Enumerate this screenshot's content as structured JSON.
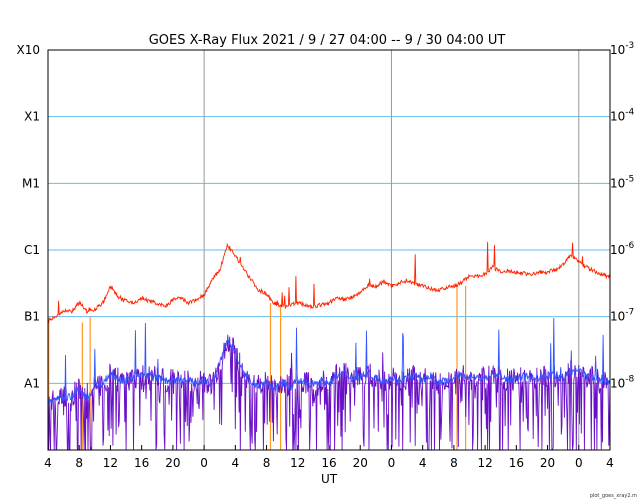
{
  "chart_data": {
    "type": "line",
    "title": "GOES X-Ray Flux   2021 /  9 / 27   04:00 --  9 / 30   04:00   UT",
    "xlabel": "UT",
    "credit": "plot_goes_xray2.m",
    "x_ticks": [
      "4",
      "8",
      "12",
      "16",
      "20",
      "0",
      "4",
      "8",
      "12",
      "16",
      "20",
      "0",
      "4",
      "8",
      "12",
      "16",
      "20",
      "0",
      "4"
    ],
    "day_boundaries": [
      "0",
      "0",
      "0"
    ],
    "y_left_labels": [
      {
        "label": "X10",
        "flux": 0.001
      },
      {
        "label": "X1",
        "flux": 0.0001
      },
      {
        "label": "M1",
        "flux": 1e-05
      },
      {
        "label": "C1",
        "flux": 1e-06
      },
      {
        "label": "B1",
        "flux": 1e-07
      },
      {
        "label": "A1",
        "flux": 1e-08
      }
    ],
    "y_right_labels": [
      {
        "base": "10",
        "exp": "-3",
        "flux": 0.001
      },
      {
        "base": "10",
        "exp": "-4",
        "flux": 0.0001
      },
      {
        "base": "10",
        "exp": "-5",
        "flux": 1e-05
      },
      {
        "base": "10",
        "exp": "-6",
        "flux": 1e-06
      },
      {
        "base": "10",
        "exp": "-7",
        "flux": 1e-07
      },
      {
        "base": "10",
        "exp": "-8",
        "flux": 1e-08
      }
    ],
    "y_scale": "log",
    "ylim": [
      1e-09,
      0.001
    ],
    "xlim_hours": [
      0,
      72
    ],
    "grid": "horizontal at each decade; vertical at day boundaries",
    "colors": {
      "long_channel": "#ff2200",
      "short_channel_a": "#3355ff",
      "short_channel_b": "#6a0fc8",
      "gaps": "#ff9922",
      "hgrid": "#66bbee",
      "vgrid": "#999999"
    },
    "series": [
      {
        "channel": "long",
        "x_hours": [
          0,
          1,
          2,
          3,
          4,
          5,
          6,
          7,
          8,
          9,
          10,
          11,
          12,
          13,
          14,
          15,
          16,
          17,
          18,
          19,
          20,
          21,
          22,
          23,
          24,
          25,
          26,
          27,
          28,
          29,
          30,
          31,
          32,
          33,
          34,
          35,
          36,
          37,
          38,
          39,
          40,
          41,
          42,
          43,
          44,
          45,
          46,
          47,
          48,
          49,
          50,
          51,
          52,
          53,
          54,
          55,
          56,
          57,
          58,
          59,
          60,
          61,
          62,
          63,
          64,
          65,
          66,
          67,
          68,
          69,
          70,
          71,
          72
        ],
        "y_flux": [
          8.6e-08,
          1e-07,
          1.2e-07,
          1.2e-07,
          1.6e-07,
          1.2e-07,
          1.3e-07,
          1.6e-07,
          2.8e-07,
          2e-07,
          1.7e-07,
          1.6e-07,
          1.9e-07,
          1.7e-07,
          1.6e-07,
          1.4e-07,
          1.8e-07,
          1.9e-07,
          1.6e-07,
          1.8e-07,
          2.1e-07,
          3.5e-07,
          5e-07,
          1.2e-06,
          8e-07,
          5.5e-07,
          3.6e-07,
          2.5e-07,
          2.2e-07,
          1.6e-07,
          1.4e-07,
          1.5e-07,
          1.6e-07,
          1.5e-07,
          1.4e-07,
          1.5e-07,
          1.6e-07,
          1.9e-07,
          1.8e-07,
          2e-07,
          2.3e-07,
          3e-07,
          2.8e-07,
          3.4e-07,
          2.9e-07,
          3.2e-07,
          3.5e-07,
          3.1e-07,
          3e-07,
          2.6e-07,
          2.5e-07,
          2.7e-07,
          2.9e-07,
          3.2e-07,
          4.2e-07,
          4e-07,
          4.4e-07,
          5.6e-07,
          4.6e-07,
          4.9e-07,
          4.6e-07,
          4.5e-07,
          4.3e-07,
          4.6e-07,
          4.7e-07,
          5.1e-07,
          6e-07,
          8.5e-07,
          6.6e-07,
          5.5e-07,
          4.8e-07,
          4.3e-07,
          3.9e-07
        ]
      },
      {
        "channel": "short",
        "x_hours": [
          0,
          1,
          2,
          3,
          4,
          5,
          6,
          7,
          8,
          9,
          10,
          11,
          12,
          13,
          14,
          15,
          16,
          17,
          18,
          19,
          20,
          21,
          22,
          23,
          24,
          25,
          26,
          27,
          28,
          29,
          30,
          31,
          32,
          33,
          34,
          35,
          36,
          37,
          38,
          39,
          40,
          41,
          42,
          43,
          44,
          45,
          46,
          47,
          48,
          49,
          50,
          51,
          52,
          53,
          54,
          55,
          56,
          57,
          58,
          59,
          60,
          61,
          62,
          63,
          64,
          65,
          66,
          67,
          68,
          69,
          70,
          71,
          72
        ],
        "y_flux": [
          5e-09,
          6e-09,
          6e-09,
          6.5e-09,
          8e-09,
          6e-09,
          9e-09,
          1e-08,
          1.4e-08,
          1.2e-08,
          1.1e-08,
          1.2e-08,
          1.4e-08,
          1.3e-08,
          1.2e-08,
          1.1e-08,
          1.1e-08,
          1.1e-08,
          1.1e-08,
          1e-08,
          1.1e-08,
          1e-08,
          2e-08,
          4.5e-08,
          3e-08,
          1.4e-08,
          1.1e-08,
          9e-09,
          1.1e-08,
          8e-09,
          1e-08,
          9e-09,
          1.1e-08,
          1e-08,
          1e-08,
          1.1e-08,
          1e-08,
          1.3e-08,
          1.4e-08,
          1.2e-08,
          1.3e-08,
          1.4e-08,
          1.2e-08,
          1.1e-08,
          1.2e-08,
          1.1e-08,
          1.2e-08,
          1.3e-08,
          1.1e-08,
          1.3e-08,
          1e-08,
          1.1e-08,
          1.2e-08,
          1.3e-08,
          1.3e-08,
          1.2e-08,
          1.2e-08,
          1.4e-08,
          1.3e-08,
          1.1e-08,
          1.2e-08,
          1.3e-08,
          1.2e-08,
          1.2e-08,
          1.3e-08,
          1.3e-08,
          1.2e-08,
          1.5e-08,
          1.5e-08,
          1.3e-08,
          1.2e-08,
          1.1e-08,
          1e-08
        ]
      }
    ]
  }
}
